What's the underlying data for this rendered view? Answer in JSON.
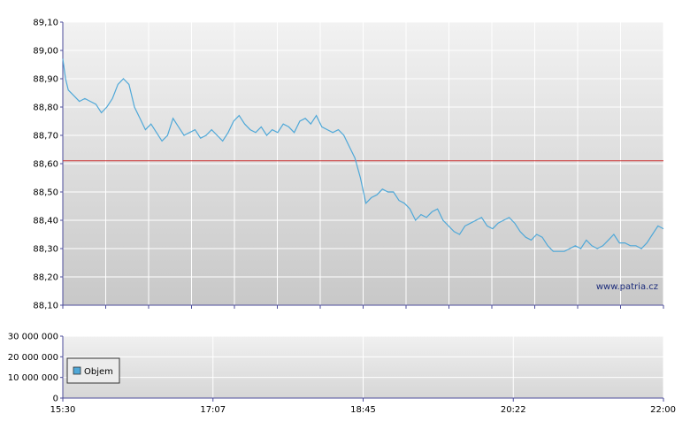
{
  "chart_data": [
    {
      "type": "line",
      "title": "",
      "xlabel": "",
      "ylabel": "",
      "ylim": [
        88.1,
        89.1
      ],
      "y_tick_labels": [
        "89,10",
        "89,00",
        "88,90",
        "88,80",
        "88,70",
        "88,60",
        "88,50",
        "88,40",
        "88,30",
        "88,20",
        "88,10"
      ],
      "grid": true,
      "watermark": "www.patria.cz",
      "reference_line": {
        "y": 88.61,
        "color": "#cc3333"
      },
      "series": [
        {
          "color": "#4fa8d8",
          "points": [
            [
              0.0,
              88.97
            ],
            [
              0.5,
              88.9
            ],
            [
              1.0,
              88.86
            ],
            [
              2.0,
              88.84
            ],
            [
              3.0,
              88.82
            ],
            [
              4.0,
              88.83
            ],
            [
              5.0,
              88.82
            ],
            [
              6.0,
              88.81
            ],
            [
              7.0,
              88.78
            ],
            [
              8.0,
              88.8
            ],
            [
              9.0,
              88.83
            ],
            [
              10.0,
              88.88
            ],
            [
              11.0,
              88.9
            ],
            [
              12.0,
              88.88
            ],
            [
              13.0,
              88.8
            ],
            [
              14.0,
              88.76
            ],
            [
              15.0,
              88.72
            ],
            [
              16.0,
              88.74
            ],
            [
              17.0,
              88.71
            ],
            [
              18.0,
              88.68
            ],
            [
              19.0,
              88.7
            ],
            [
              20.0,
              88.76
            ],
            [
              21.0,
              88.73
            ],
            [
              22.0,
              88.7
            ],
            [
              23.0,
              88.71
            ],
            [
              24.0,
              88.72
            ],
            [
              25.0,
              88.69
            ],
            [
              26.0,
              88.7
            ],
            [
              27.0,
              88.72
            ],
            [
              28.0,
              88.7
            ],
            [
              29.0,
              88.68
            ],
            [
              30.0,
              88.71
            ],
            [
              31.0,
              88.75
            ],
            [
              32.0,
              88.77
            ],
            [
              33.0,
              88.74
            ],
            [
              34.0,
              88.72
            ],
            [
              35.0,
              88.71
            ],
            [
              36.0,
              88.73
            ],
            [
              37.0,
              88.7
            ],
            [
              38.0,
              88.72
            ],
            [
              39.0,
              88.71
            ],
            [
              40.0,
              88.74
            ],
            [
              41.0,
              88.73
            ],
            [
              42.0,
              88.71
            ],
            [
              43.0,
              88.75
            ],
            [
              44.0,
              88.76
            ],
            [
              45.0,
              88.74
            ],
            [
              46.0,
              88.77
            ],
            [
              47.0,
              88.73
            ],
            [
              48.0,
              88.72
            ],
            [
              49.0,
              88.71
            ],
            [
              50.0,
              88.72
            ],
            [
              51.0,
              88.7
            ],
            [
              52.0,
              88.66
            ],
            [
              53.0,
              88.62
            ],
            [
              54.0,
              88.55
            ],
            [
              55.0,
              88.46
            ],
            [
              56.0,
              88.48
            ],
            [
              57.0,
              88.49
            ],
            [
              58.0,
              88.51
            ],
            [
              59.0,
              88.5
            ],
            [
              60.0,
              88.5
            ],
            [
              61.0,
              88.47
            ],
            [
              62.0,
              88.46
            ],
            [
              63.0,
              88.44
            ],
            [
              64.0,
              88.4
            ],
            [
              65.0,
              88.42
            ],
            [
              66.0,
              88.41
            ],
            [
              67.0,
              88.43
            ],
            [
              68.0,
              88.44
            ],
            [
              69.0,
              88.4
            ],
            [
              70.0,
              88.38
            ],
            [
              71.0,
              88.36
            ],
            [
              72.0,
              88.35
            ],
            [
              73.0,
              88.38
            ],
            [
              74.0,
              88.39
            ],
            [
              75.0,
              88.4
            ],
            [
              76.0,
              88.41
            ],
            [
              77.0,
              88.38
            ],
            [
              78.0,
              88.37
            ],
            [
              79.0,
              88.39
            ],
            [
              80.0,
              88.4
            ],
            [
              81.0,
              88.41
            ],
            [
              82.0,
              88.39
            ],
            [
              83.0,
              88.36
            ],
            [
              84.0,
              88.34
            ],
            [
              85.0,
              88.33
            ],
            [
              86.0,
              88.35
            ],
            [
              87.0,
              88.34
            ],
            [
              88.0,
              88.31
            ],
            [
              89.0,
              88.29
            ],
            [
              90.0,
              88.29
            ],
            [
              91.0,
              88.29
            ],
            [
              92.0,
              88.3
            ],
            [
              93.0,
              88.31
            ],
            [
              94.0,
              88.3
            ],
            [
              95.0,
              88.33
            ],
            [
              96.0,
              88.31
            ],
            [
              97.0,
              88.3
            ],
            [
              98.0,
              88.31
            ],
            [
              99.0,
              88.33
            ],
            [
              100.0,
              88.35
            ],
            [
              101.0,
              88.32
            ],
            [
              102.0,
              88.32
            ],
            [
              103.0,
              88.31
            ],
            [
              104.0,
              88.31
            ],
            [
              105.0,
              88.3
            ],
            [
              106.0,
              88.32
            ],
            [
              107.0,
              88.35
            ],
            [
              108.0,
              88.38
            ],
            [
              109.0,
              88.37
            ]
          ]
        }
      ]
    },
    {
      "type": "bar",
      "title": "",
      "xlabel": "",
      "ylabel": "",
      "ylim": [
        0,
        30000000
      ],
      "y_tick_labels": [
        "30 000 000",
        "20 000 000",
        "10 000 000",
        "0"
      ],
      "x_tick_labels": [
        "15:30",
        "17:07",
        "18:45",
        "20:22",
        "22:00"
      ],
      "legend": {
        "label": "Objem",
        "color": "#4fa8d8",
        "placement": "left"
      },
      "series": [
        {
          "name": "Objem",
          "color": "#4fa8d8",
          "values": [
            0
          ]
        }
      ]
    }
  ]
}
